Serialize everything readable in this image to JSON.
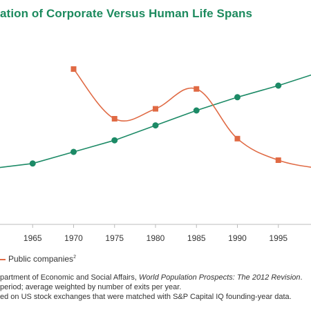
{
  "title": "ation of Corporate Versus Human Life Spans",
  "legend": {
    "public_label": "Public companies",
    "public_sup": "2"
  },
  "notes": {
    "line1_a": "partment of Economic and Social Affairs, ",
    "line1_b": "World Population Prospects: The 2012 Revision",
    "line1_c": ".",
    "line2": "period; average weighted by number of exits per year.",
    "line3": "ed on US stock exchanges that were matched with S&P Capital IQ founding-year data."
  },
  "colors": {
    "human": "#1c8a66",
    "public": "#e06a44",
    "title": "#1c8a5e"
  },
  "chart_data": {
    "type": "line",
    "x_tick_labels": [
      "0",
      "1965",
      "1970",
      "1975",
      "1980",
      "1985",
      "1990",
      "1995",
      "2"
    ],
    "x": [
      1960,
      1965,
      1970,
      1975,
      1980,
      1985,
      1990,
      1995,
      2000
    ],
    "xlim": [
      1960,
      2000
    ],
    "ylim": [
      0,
      100
    ],
    "series": [
      {
        "marker": "circle",
        "x": [
          1960,
          1965,
          1970,
          1975,
          1980,
          1985,
          1990,
          1995,
          2000
        ],
        "values": [
          40,
          43,
          50,
          57,
          66,
          75,
          83,
          90,
          98
        ]
      },
      {
        "name": "Public companies",
        "marker": "square",
        "x": [
          1970,
          1975,
          1980,
          1985,
          1990,
          1995,
          2000
        ],
        "values": [
          100,
          70,
          76,
          88,
          58,
          45,
          40
        ]
      }
    ]
  }
}
